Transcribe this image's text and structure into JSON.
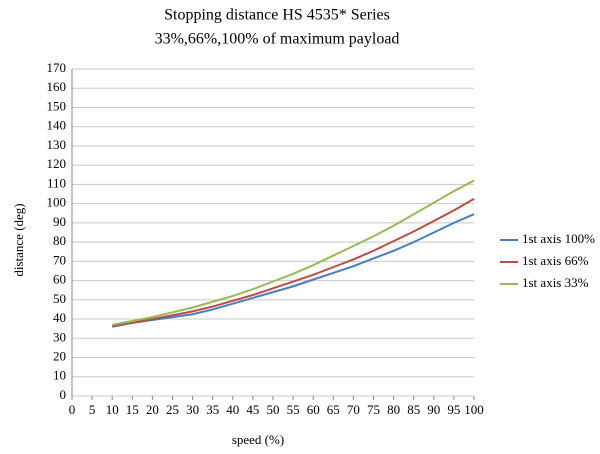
{
  "chart_data": {
    "type": "line",
    "title": "Stopping distance HS 4535* Series",
    "subtitle": "33%,66%,100% of maximum payload",
    "x_label": "speed (%)",
    "y_label": "distance (deg)",
    "x": [
      10,
      15,
      20,
      25,
      30,
      35,
      40,
      45,
      50,
      55,
      60,
      65,
      70,
      75,
      80,
      85,
      90,
      95,
      100
    ],
    "series": [
      {
        "name": "1st axis 100%",
        "color": "#4a7ebb",
        "values": [
          36,
          38,
          39.5,
          41,
          42.5,
          45,
          48,
          51,
          54,
          57,
          60.5,
          64,
          67.5,
          71.5,
          75.5,
          80,
          85,
          90,
          94.5
        ]
      },
      {
        "name": "1st axis 66%",
        "color": "#be4b48",
        "values": [
          36.5,
          38,
          40,
          42,
          44,
          46.5,
          49.5,
          52.5,
          56,
          59.5,
          63,
          67,
          71,
          75.5,
          80.5,
          85.5,
          91,
          96.5,
          102.5
        ]
      },
      {
        "name": "1st axis 33%",
        "color": "#98b954",
        "values": [
          37,
          39,
          41,
          43.5,
          46,
          49,
          52,
          55.5,
          59.5,
          63.5,
          68,
          73,
          78,
          83,
          88.5,
          94.5,
          100.5,
          106.5,
          112
        ]
      }
    ],
    "xlim": [
      0,
      100
    ],
    "xticks": [
      0,
      5,
      10,
      15,
      20,
      25,
      30,
      35,
      40,
      45,
      50,
      55,
      60,
      65,
      70,
      75,
      80,
      85,
      90,
      95,
      100
    ],
    "ylim": [
      0,
      170
    ],
    "yticks": [
      0,
      10,
      20,
      30,
      40,
      50,
      60,
      70,
      80,
      90,
      100,
      110,
      120,
      130,
      140,
      150,
      160,
      170
    ],
    "grid": true,
    "legend": "right"
  }
}
